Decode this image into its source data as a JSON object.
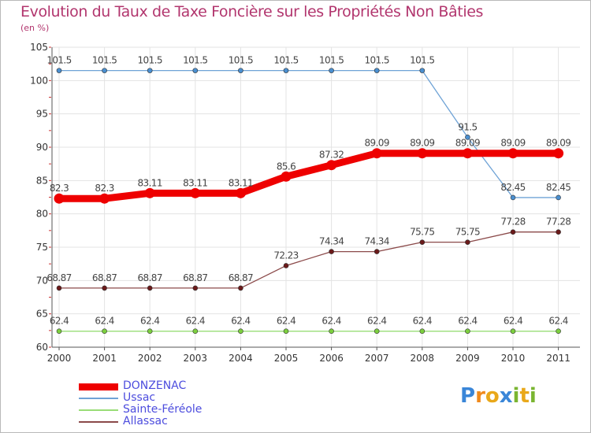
{
  "title": "Evolution du Taux de Taxe Foncière sur les Propriétés Non Bâties",
  "subtitle": "(en %)",
  "chart_data": {
    "type": "line",
    "title": "Evolution du Taux de Taxe Foncière sur les Propriétés Non Bâties",
    "ylabel": "(en %)",
    "xlabel": "",
    "x": [
      "2000",
      "2001",
      "2002",
      "2003",
      "2004",
      "2005",
      "2006",
      "2007",
      "2008",
      "2009",
      "2010",
      "2011"
    ],
    "ylim": [
      60,
      105
    ],
    "yticks": [
      60,
      65,
      70,
      75,
      80,
      85,
      90,
      95,
      100,
      105
    ],
    "grid": true,
    "legend": "bottom-left",
    "series": [
      {
        "name": "DONZENAC",
        "color": "#ee0000",
        "width": 9,
        "values": [
          82.3,
          82.3,
          83.11,
          83.11,
          83.11,
          85.6,
          87.32,
          89.09,
          89.09,
          89.09,
          89.09,
          89.09
        ],
        "labels": [
          "82.3",
          "82.3",
          "83.11",
          "83.11",
          "83.11",
          "85.6",
          "87.32",
          "89.09",
          "89.09",
          "89.09",
          "89.09",
          "89.09"
        ]
      },
      {
        "name": "Ussac",
        "color": "#6fa3d6",
        "width": 1.3,
        "marker_fill": "#4a8fd0",
        "values": [
          101.5,
          101.5,
          101.5,
          101.5,
          101.5,
          101.5,
          101.5,
          101.5,
          101.5,
          91.5,
          82.45,
          82.45
        ],
        "labels": [
          "101.5",
          "101.5",
          "101.5",
          "101.5",
          "101.5",
          "101.5",
          "101.5",
          "101.5",
          "101.5",
          "91.5",
          "82.45",
          "82.45"
        ]
      },
      {
        "name": "Sainte-Féréole",
        "color": "#99dd77",
        "width": 1.3,
        "marker_fill": "#7ccf3e",
        "values": [
          62.4,
          62.4,
          62.4,
          62.4,
          62.4,
          62.4,
          62.4,
          62.4,
          62.4,
          62.4,
          62.4,
          62.4
        ],
        "labels": [
          "62.4",
          "62.4",
          "62.4",
          "62.4",
          "62.4",
          "62.4",
          "62.4",
          "62.4",
          "62.4",
          "62.4",
          "62.4",
          "62.4"
        ]
      },
      {
        "name": "Allassac",
        "color": "#8b4a4a",
        "width": 1.3,
        "marker_fill": "#6b1a1a",
        "values": [
          68.87,
          68.87,
          68.87,
          68.87,
          68.87,
          72.23,
          74.34,
          74.34,
          75.75,
          75.75,
          77.28,
          77.28
        ],
        "labels": [
          "68.87",
          "68.87",
          "68.87",
          "68.87",
          "68.87",
          "72.23",
          "74.34",
          "74.34",
          "75.75",
          "75.75",
          "77.28",
          "77.28"
        ]
      }
    ]
  },
  "legend": {
    "items": [
      {
        "label": "DONZENAC",
        "color": "#ee0000"
      },
      {
        "label": "Ussac",
        "color": "#6fa3d6"
      },
      {
        "label": "Sainte-Féréole",
        "color": "#99dd77"
      },
      {
        "label": "Allassac",
        "color": "#8b4a4a"
      }
    ]
  },
  "logo": {
    "text": "Proxiti"
  }
}
